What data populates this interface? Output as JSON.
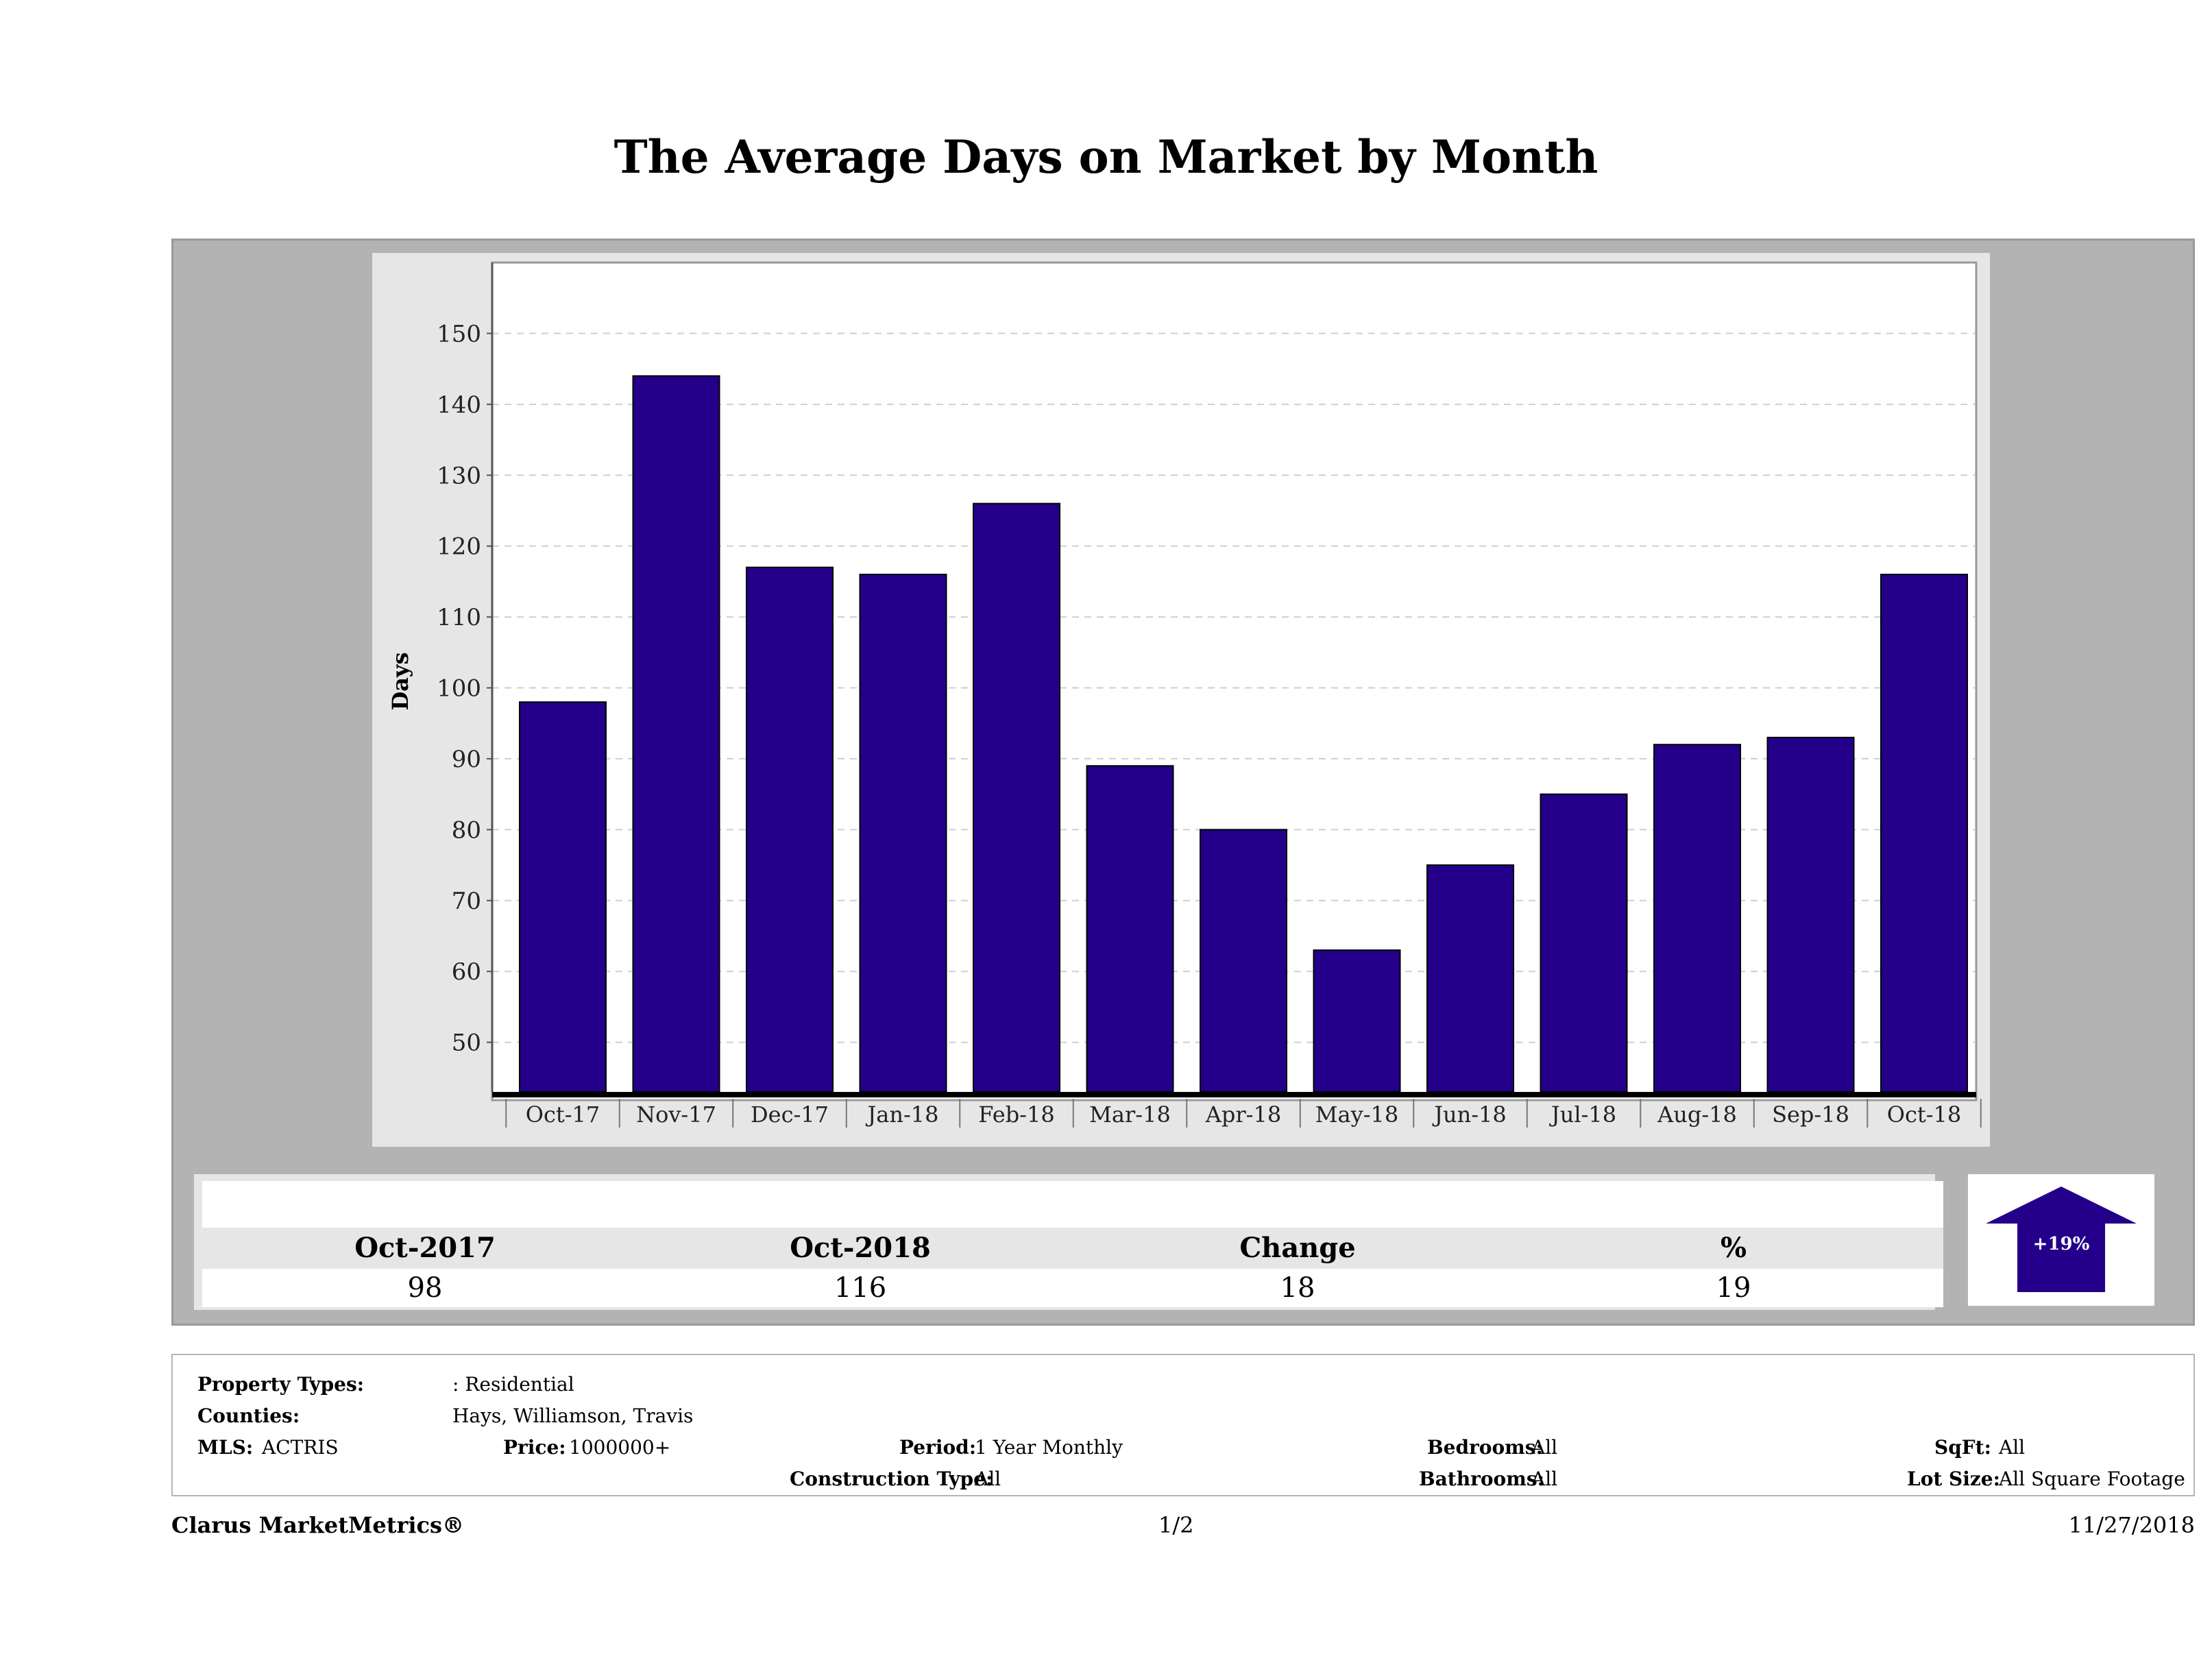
{
  "page_title": "The Average Days on Market by Month",
  "chart_data": {
    "type": "bar",
    "categories": [
      "Oct-17",
      "Nov-17",
      "Dec-17",
      "Jan-18",
      "Feb-18",
      "Mar-18",
      "Apr-18",
      "May-18",
      "Jun-18",
      "Jul-18",
      "Aug-18",
      "Sep-18",
      "Oct-18"
    ],
    "values": [
      98,
      144,
      117,
      116,
      126,
      89,
      80,
      63,
      75,
      85,
      92,
      93,
      116
    ],
    "ylabel": "Days",
    "xlabel": "",
    "yticks": [
      50,
      60,
      70,
      80,
      90,
      100,
      110,
      120,
      130,
      140,
      150
    ],
    "ylim": [
      43,
      160
    ],
    "bar_color": "#24008a",
    "grid": true
  },
  "summary": {
    "headers": [
      "Oct-2017",
      "Oct-2018",
      "Change",
      "%"
    ],
    "values": [
      "98",
      "116",
      "18",
      "19"
    ],
    "badge": "+19%",
    "arrow_color": "#24008a"
  },
  "criteria": {
    "property_types_label": "Property Types:",
    "property_types_value": ": Residential",
    "counties_label": "Counties:",
    "counties_value": "Hays, Williamson, Travis",
    "mls_label": "MLS:",
    "mls_value": "ACTRIS",
    "price_label": "Price:",
    "price_value": "1000000+",
    "period_label": "Period:",
    "period_value": "1 Year Monthly",
    "construction_label": "Construction Type:",
    "construction_value": "All",
    "bedrooms_label": "Bedrooms:",
    "bedrooms_value": "All",
    "bathrooms_label": "Bathrooms:",
    "bathrooms_value": "All",
    "sqft_label": "SqFt:",
    "sqft_value": "All",
    "lotsize_label": "Lot Size:",
    "lotsize_value": "All Square Footage"
  },
  "footer": {
    "brand": "Clarus MarketMetrics®",
    "page": "1/2",
    "date": "11/27/2018"
  }
}
